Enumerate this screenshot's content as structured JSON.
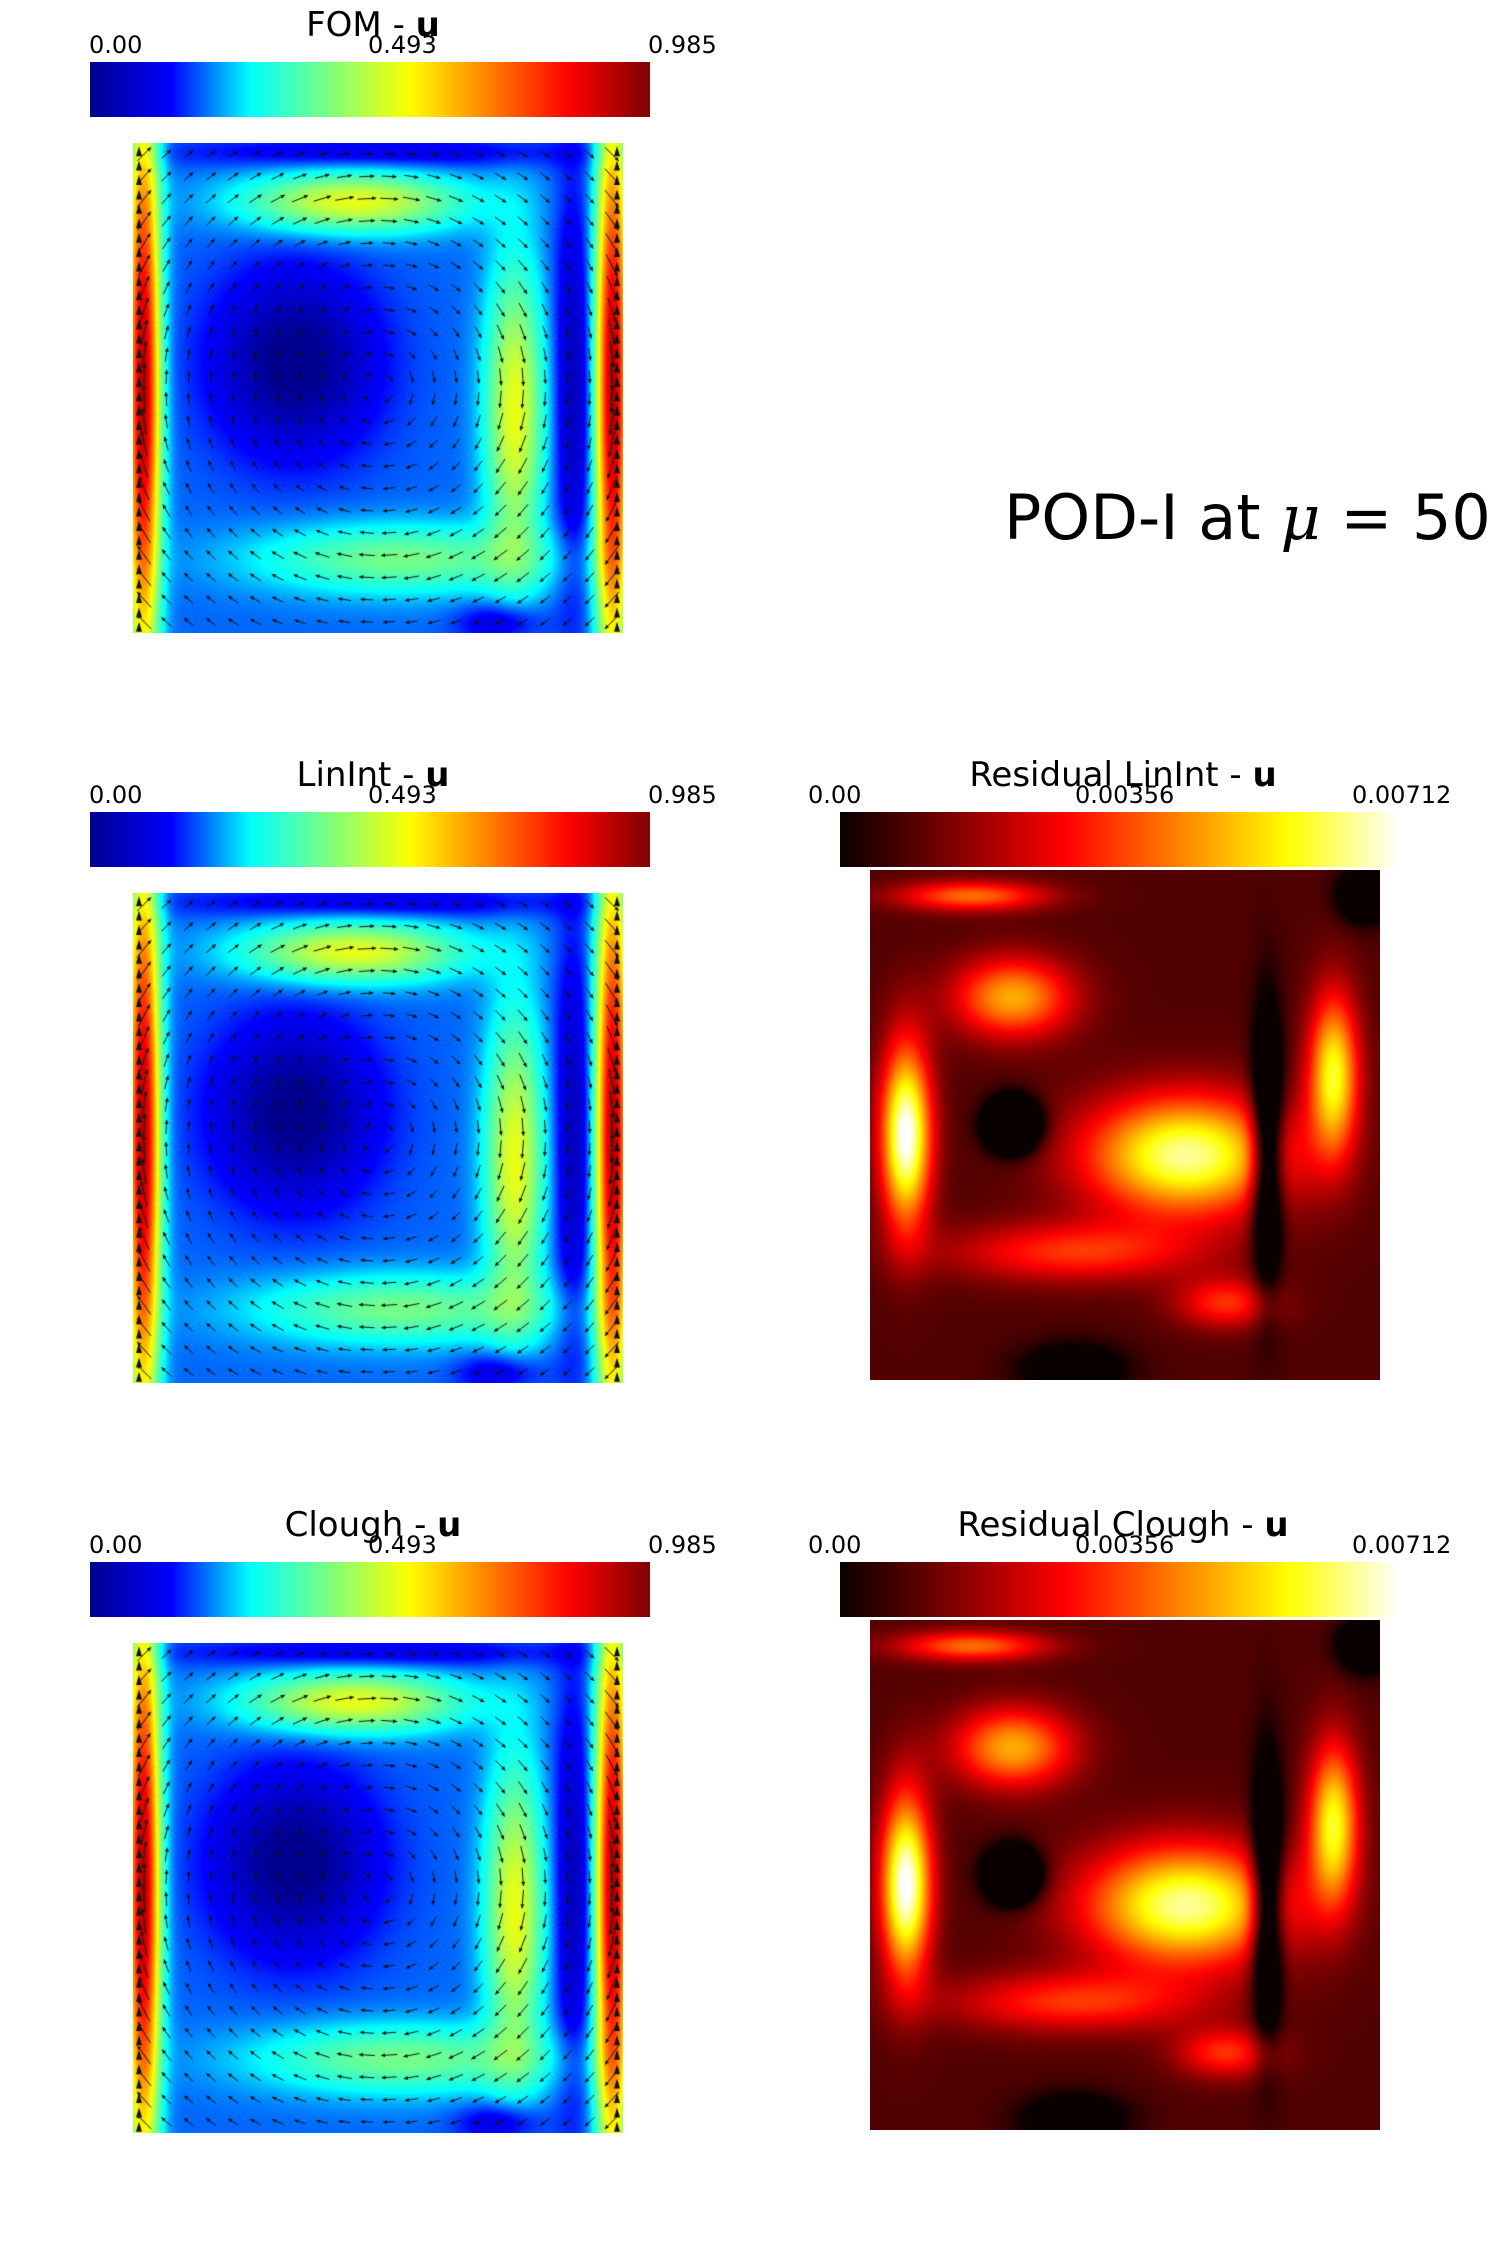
{
  "figure": {
    "main_title": {
      "prefix": "POD-I at ",
      "symbol": "μ",
      "suffix": " = 50"
    }
  },
  "colorscales": {
    "jet": [
      "#00008f",
      "#0000ff",
      "#00ffff",
      "#7fff7f",
      "#ffff00",
      "#ff7f00",
      "#ff0000",
      "#7f0000"
    ],
    "hot": [
      "#0a0000",
      "#7f0000",
      "#ff0000",
      "#ff8000",
      "#ffff00",
      "#ffffff"
    ]
  },
  "panels": [
    {
      "id": "fom",
      "title_text": "FOM - ",
      "title_bold": "u",
      "colormap": "jet",
      "ticks": [
        "0.00",
        "0.493",
        "0.985"
      ],
      "field": "velocity",
      "arrows": true
    },
    {
      "id": "linint",
      "title_text": "LinInt - ",
      "title_bold": "u",
      "colormap": "jet",
      "ticks": [
        "0.00",
        "0.493",
        "0.985"
      ],
      "field": "velocity",
      "arrows": true
    },
    {
      "id": "res_linint",
      "title_text": "Residual LinInt - ",
      "title_bold": "u",
      "colormap": "hot",
      "ticks": [
        "0.00",
        "0.00356",
        "0.00712"
      ],
      "field": "residual",
      "arrows": false
    },
    {
      "id": "clough",
      "title_text": "Clough - ",
      "title_bold": "u",
      "colormap": "jet",
      "ticks": [
        "0.00",
        "0.493",
        "0.985"
      ],
      "field": "velocity",
      "arrows": true
    },
    {
      "id": "res_clough",
      "title_text": "Residual Clough - ",
      "title_bold": "u",
      "colormap": "hot",
      "ticks": [
        "0.00",
        "0.00356",
        "0.00712"
      ],
      "field": "residual",
      "arrows": false
    }
  ]
}
